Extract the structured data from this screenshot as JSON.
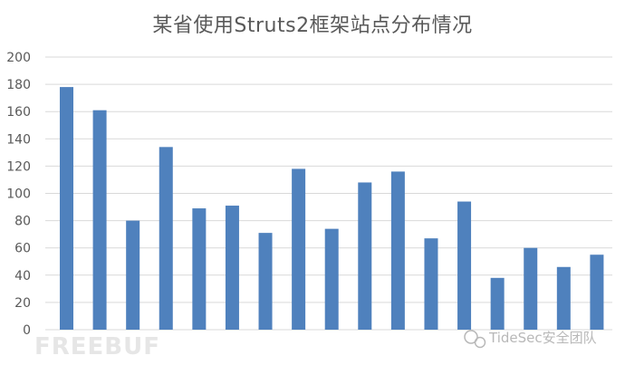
{
  "chart_data": {
    "type": "bar",
    "title": "某省使用Struts2框架站点分布情况",
    "categories": [
      "",
      "",
      "",
      "",
      "",
      "",
      "",
      "",
      "",
      "",
      "",
      "",
      "",
      "",
      "",
      "",
      ""
    ],
    "values": [
      178,
      161,
      80,
      134,
      89,
      91,
      71,
      118,
      74,
      108,
      116,
      67,
      94,
      38,
      60,
      46,
      55
    ],
    "ylim": [
      0,
      200
    ],
    "yticks": [
      0,
      20,
      40,
      60,
      80,
      100,
      120,
      140,
      160,
      180,
      200
    ],
    "grid": true,
    "colors": {
      "bar": "#4f81bd",
      "grid": "#d9d9d9",
      "text": "#595959"
    }
  },
  "watermark": {
    "text": "TideSec安全团队",
    "logo_text": "FREEBUF"
  }
}
